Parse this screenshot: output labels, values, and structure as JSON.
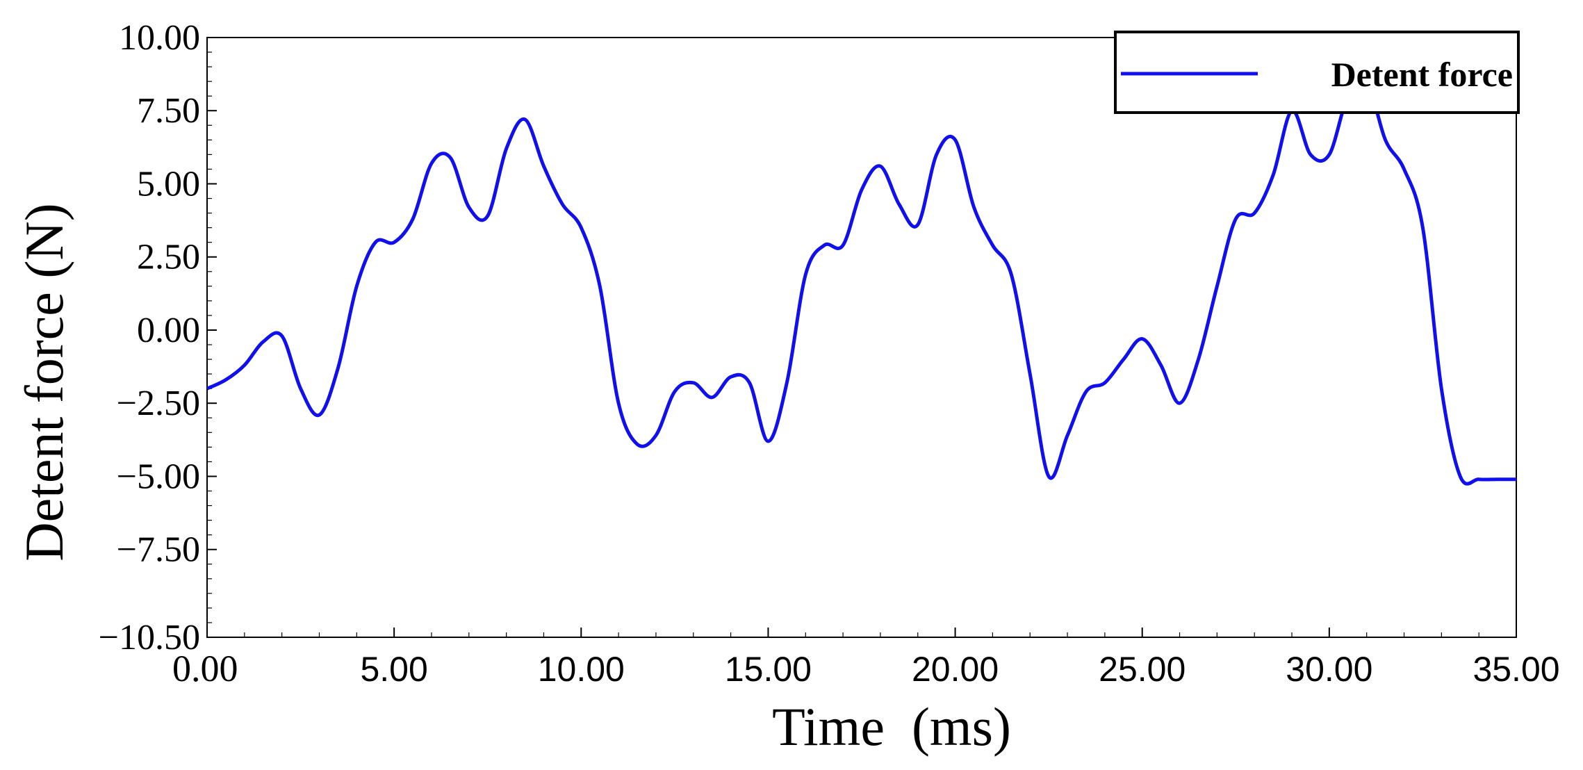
{
  "chart_data": {
    "type": "line",
    "xlabel": "Time  (ms)",
    "ylabel": "Detent force (N)",
    "xlim": [
      0,
      35
    ],
    "ylim": [
      -10.5,
      10
    ],
    "x_ticks": [
      {
        "value": 0,
        "label": "0.00"
      },
      {
        "value": 5,
        "label": "5.00"
      },
      {
        "value": 10,
        "label": "10.00"
      },
      {
        "value": 15,
        "label": "15.00"
      },
      {
        "value": 20,
        "label": "20.00"
      },
      {
        "value": 25,
        "label": "25.00"
      },
      {
        "value": 30,
        "label": "30.00"
      },
      {
        "value": 35,
        "label": "35.00"
      }
    ],
    "y_ticks": [
      {
        "value": 10,
        "label": "10.00"
      },
      {
        "value": 7.5,
        "label": "7.50"
      },
      {
        "value": 5,
        "label": "5.00"
      },
      {
        "value": 2.5,
        "label": "2.50"
      },
      {
        "value": 0,
        "label": "0.00"
      },
      {
        "value": -2.5,
        "label": "−2.50"
      },
      {
        "value": -5,
        "label": "−5.00"
      },
      {
        "value": -7.5,
        "label": "−7.50"
      },
      {
        "value": -10.5,
        "label": "−10.50"
      }
    ],
    "grid": false,
    "legend_position": "top-right",
    "series": [
      {
        "name": "Detent force",
        "color": "#1010ee",
        "x": [
          0,
          0.5,
          1.0,
          1.5,
          2.0,
          2.5,
          3.0,
          3.5,
          4.0,
          4.5,
          5.0,
          5.5,
          6.0,
          6.5,
          7.0,
          7.5,
          8.0,
          8.5,
          9.0,
          9.5,
          10.0,
          10.5,
          11.0,
          11.5,
          12.0,
          12.5,
          13.0,
          13.5,
          14.0,
          14.5,
          15.0,
          15.5,
          16.0,
          16.5,
          17.0,
          17.5,
          18.0,
          18.5,
          19.0,
          19.5,
          20.0,
          20.5,
          21.0,
          21.5,
          22.0,
          22.5,
          23.0,
          23.5,
          24.0,
          24.5,
          25.0,
          25.5,
          26.0,
          26.5,
          27.0,
          27.5,
          28.0,
          28.5,
          29.0,
          29.5,
          30.0,
          30.5,
          31.0,
          31.5,
          32.0,
          32.5,
          33.0,
          33.5,
          34.0,
          34.5,
          35.0
        ],
        "y": [
          -2.0,
          -1.7,
          -1.2,
          -0.4,
          -0.2,
          -2.0,
          -2.9,
          -1.3,
          1.5,
          3.0,
          3.0,
          3.8,
          5.7,
          5.9,
          4.2,
          3.9,
          6.2,
          7.2,
          5.6,
          4.3,
          3.5,
          1.5,
          -2.5,
          -3.9,
          -3.6,
          -2.1,
          -1.8,
          -2.3,
          -1.6,
          -1.8,
          -3.8,
          -1.8,
          1.9,
          2.9,
          2.9,
          4.8,
          5.6,
          4.3,
          3.6,
          6.0,
          6.5,
          4.2,
          2.9,
          1.9,
          -1.5,
          -5.0,
          -3.6,
          -2.1,
          -1.8,
          -1.0,
          -0.3,
          -1.2,
          -2.5,
          -1.0,
          1.5,
          3.8,
          4.0,
          5.3,
          7.5,
          6.0,
          6.0,
          8.0,
          8.5,
          6.5,
          5.5,
          3.5,
          -2.0,
          -5.0,
          -5.1,
          -5.1,
          -5.1
        ]
      }
    ]
  }
}
